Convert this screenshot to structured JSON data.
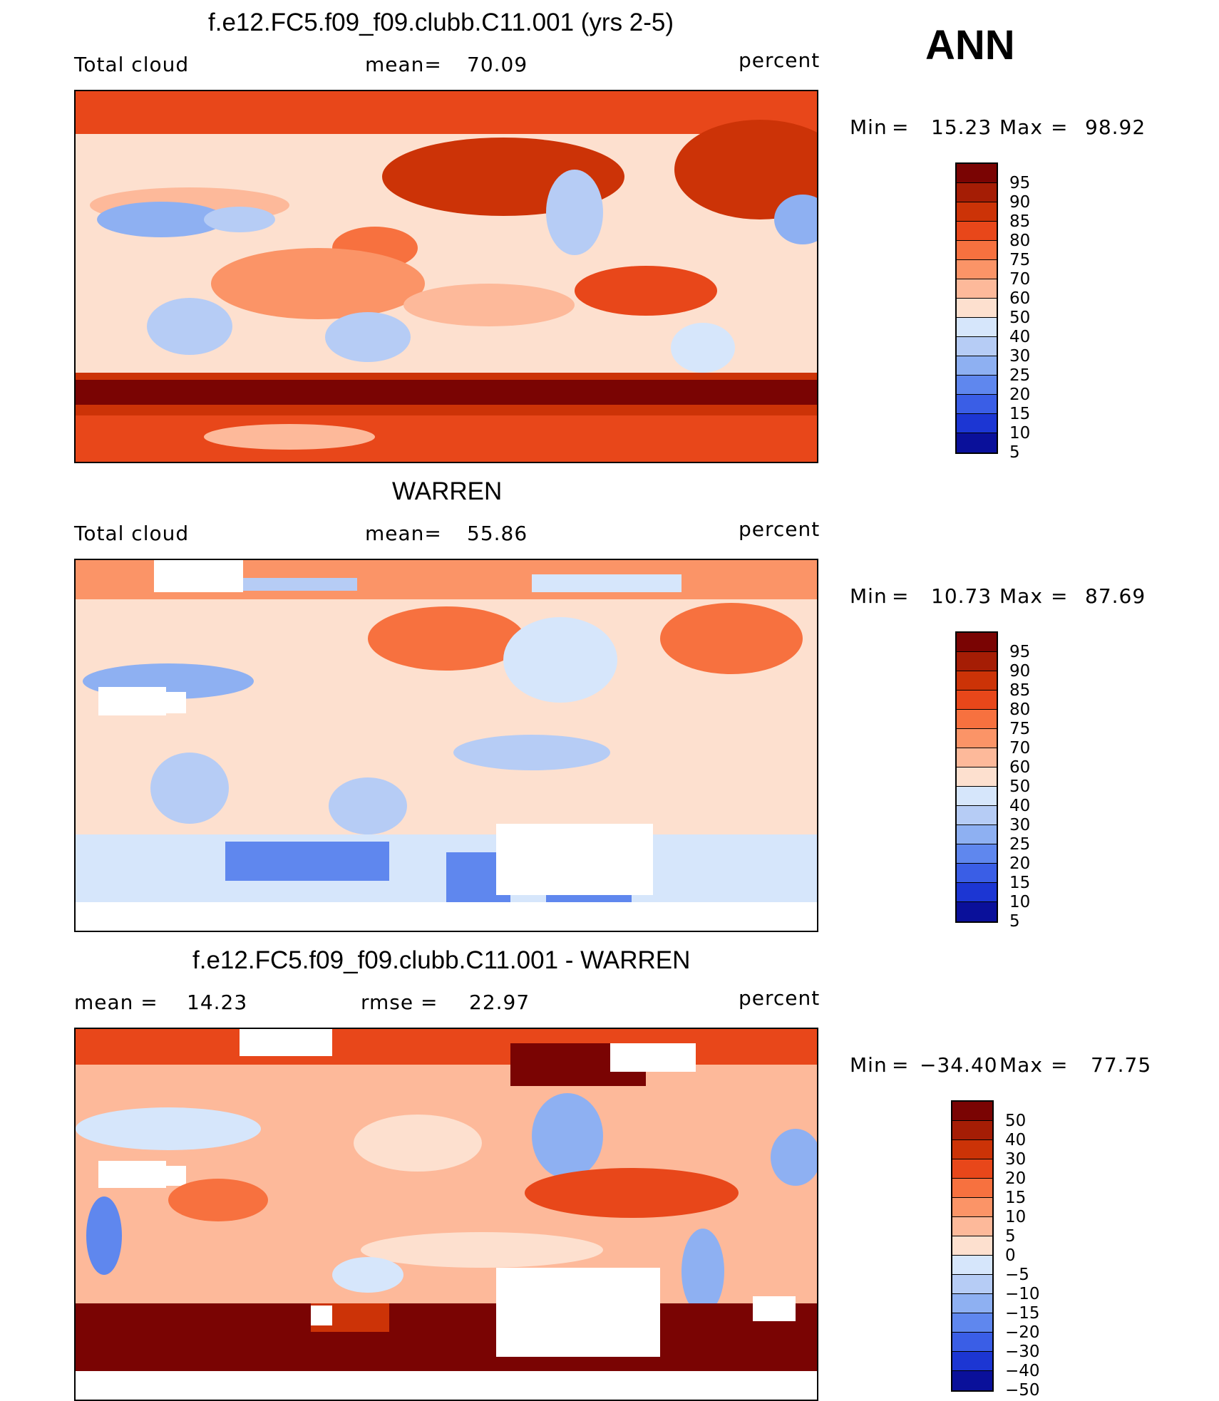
{
  "season": "ANN",
  "panels": [
    {
      "title": "f.e12.FC5.f09_f09.clubb.C11.001 (yrs 2-5)",
      "left_label": "Total cloud",
      "mean_label": "mean=",
      "mean_value": "70.09",
      "units": "percent",
      "min_label": "Min",
      "min_value": "15.23",
      "max_label": "Max",
      "max_value": "98.92",
      "colorbar_ticks": [
        "95",
        "90",
        "85",
        "80",
        "75",
        "70",
        "60",
        "50",
        "40",
        "30",
        "25",
        "20",
        "15",
        "10",
        "5"
      ]
    },
    {
      "title": "WARREN",
      "left_label": "Total cloud",
      "mean_label": "mean=",
      "mean_value": "55.86",
      "units": "percent",
      "min_label": "Min",
      "min_value": "10.73",
      "max_label": "Max",
      "max_value": "87.69",
      "colorbar_ticks": [
        "95",
        "90",
        "85",
        "80",
        "75",
        "70",
        "60",
        "50",
        "40",
        "30",
        "25",
        "20",
        "15",
        "10",
        "5"
      ]
    },
    {
      "title": "f.e12.FC5.f09_f09.clubb.C11.001 - WARREN",
      "left_label": "mean =",
      "left_value": "14.23",
      "mean_label": "rmse =",
      "mean_value": "22.97",
      "units": "percent",
      "min_label": "Min",
      "min_value": "−34.40",
      "max_label": "Max",
      "max_value": "77.75",
      "colorbar_ticks": [
        "50",
        "40",
        "30",
        "20",
        "15",
        "10",
        "5",
        "0",
        "−5",
        "−10",
        "−15",
        "−20",
        "−30",
        "−40",
        "−50"
      ]
    }
  ],
  "colorbar_colors": [
    "#7a0403",
    "#a51d05",
    "#cc3307",
    "#e8471a",
    "#f7713f",
    "#fb9467",
    "#fdb99a",
    "#fde0cf",
    "#d6e6fb",
    "#b6ccf5",
    "#8eb0f2",
    "#5f87ee",
    "#3a5ee6",
    "#1c36d3",
    "#0a109a"
  ]
}
